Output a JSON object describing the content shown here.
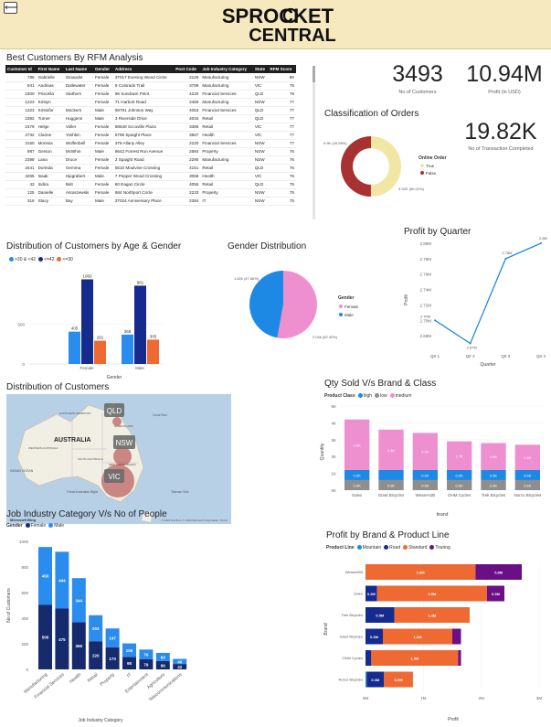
{
  "header": {
    "back_icon": "back-arrow-icon",
    "logo_line1": "SPROCKET",
    "logo_line2": "CENTRAL"
  },
  "rfm_table": {
    "title": "Best Customers By RFM Analysis",
    "columns": [
      "Customer Id",
      "First Name",
      "Last Name",
      "Gender",
      "Address",
      "Post Code",
      "Job Industry Category",
      "State",
      "RFM Score"
    ],
    "rows": [
      [
        "786",
        "Gabrielle",
        "Ginaudot",
        "Female",
        "37017 Evening Wood Circle",
        "2126",
        "Manufacturing",
        "NSW",
        "80"
      ],
      [
        "941",
        "Andreas",
        "Dallewater",
        "Female",
        "9 Colorado Trail",
        "3799",
        "Manufacturing",
        "VIC",
        "78"
      ],
      [
        "1600",
        "Priscella",
        "Stathers",
        "Female",
        "96 Sundown Point",
        "4220",
        "Financial Services",
        "QLD",
        "78"
      ],
      [
        "1223",
        "Kristyn",
        "",
        "Female",
        "71 Harbort Road",
        "2480",
        "Manufacturing",
        "NSW",
        "77"
      ],
      [
        "1323",
        "Kristofor",
        "Mockers",
        "Male",
        "98791 Johnson Way",
        "4053",
        "Financial Services",
        "QLD",
        "77"
      ],
      [
        "2382",
        "Turner",
        "Huggens",
        "Male",
        "3 Riverside Drive",
        "4034",
        "Retail",
        "QLD",
        "77"
      ],
      [
        "2479",
        "Helge",
        "Voller",
        "Female",
        "88548 Sccoville Plaza",
        "3385",
        "Retail",
        "VIC",
        "77"
      ],
      [
        "2732",
        "Clarine",
        "Yoshkin",
        "Female",
        "5795 Spaight Place",
        "3667",
        "Health",
        "VIC",
        "77"
      ],
      [
        "3150",
        "Morissa",
        "Wolfenbell",
        "Female",
        "378 Allany Alley",
        "2220",
        "Financial Services",
        "NSW",
        "77"
      ],
      [
        "987",
        "Gerson",
        "McWhin",
        "Male",
        "8642 Forrest Run Avenue",
        "2684",
        "Property",
        "NSW",
        "76"
      ],
      [
        "2398",
        "Lana",
        "Druce",
        "Female",
        "2 Spaight Road",
        "2290",
        "Manufacturing",
        "NSW",
        "76"
      ],
      [
        "3441",
        "Dorinda",
        "Gemma",
        "Female",
        "5510 Moulvine Crossing",
        "4151",
        "Retail",
        "QLD",
        "76"
      ],
      [
        "3265",
        "Isaak",
        "Hipgrabert",
        "Male",
        "7 Pepper Wood Crossing",
        "3058",
        "Health",
        "VIC",
        "76"
      ],
      [
        "43",
        "Indira",
        "Belt",
        "Female",
        "60 Eagan Circle",
        "4055",
        "Retail",
        "QLD",
        "75"
      ],
      [
        "125",
        "Danielle",
        "Antoszewski",
        "Female",
        "684 Northport Circle",
        "2233",
        "Property",
        "NSW",
        "75"
      ],
      [
        "316",
        "Stacy",
        "Bay",
        "Male",
        "37024 Anniversary Place",
        "2384",
        "IT",
        "NSW",
        "75"
      ]
    ]
  },
  "kpis": {
    "customers_value": "3493",
    "customers_label": "No of Customers",
    "profit_value": "10.94M",
    "profit_label": "Profit (in USD)",
    "transactions_value": "19.82K",
    "transactions_label": "No of Transaction Completed"
  },
  "orders_chart": {
    "title": "Classification of Orders",
    "legend_title": "Online Order",
    "chart_data": {
      "type": "pie",
      "categories": [
        "True",
        "False"
      ],
      "values": [
        9.92,
        9.9
      ],
      "labels": [
        "9.92K (50.02%)",
        "9.9K (49.98%)"
      ],
      "colors": [
        "#f2e6a5",
        "#a83232"
      ]
    }
  },
  "age_gender_chart": {
    "title": "Distribution of Customers by Age & Gender",
    "legend_items": [
      {
        "label": ">30 & <42",
        "color": "#2b8cf0"
      },
      {
        "label": "<=42",
        "color": "#162b8e"
      },
      {
        "label": "<=30",
        "color": "#ee6a32"
      }
    ],
    "xlabel": "Gender",
    "chart_data": {
      "type": "bar",
      "categories": [
        "Female",
        "Male"
      ],
      "series": [
        {
          "name": ">30 & <42",
          "values": [
            405,
            368
          ]
        },
        {
          "name": "<=42",
          "values": [
            1060,
            981
          ]
        },
        {
          "name": "<=30",
          "values": [
            291,
            305
          ]
        }
      ],
      "y_ticks": [
        "500",
        "0"
      ],
      "ylim": [
        0,
        1100
      ]
    }
  },
  "gender_chart": {
    "title": "Gender Distribution",
    "legend_title": "Gender",
    "chart_data": {
      "type": "pie",
      "categories": [
        "Female",
        "Male"
      ],
      "values": [
        2.04,
        1.82
      ],
      "labels": [
        "2.04k (52.32%)",
        "1.82k (47.66%)"
      ],
      "colors": [
        "#ee8fcf",
        "#1e88e5"
      ]
    }
  },
  "profit_quarter_chart": {
    "title": "Profit by Quarter",
    "xlabel": "Quarter",
    "ylabel": "Profit",
    "chart_data": {
      "type": "line",
      "categories": [
        "Qtr 1",
        "Qtr 2",
        "Qtr 3",
        "Qtr 4"
      ],
      "values": [
        2.7,
        2.67,
        2.78,
        2.8
      ],
      "labels": [
        "2.70M",
        "2.67M",
        "2.78M",
        "2.8M"
      ],
      "y_ticks": [
        "2.80M",
        "2.78M",
        "2.76M",
        "2.74M",
        "2.72M",
        "2.70M",
        "2.68M"
      ],
      "ylim": [
        2.66,
        2.8
      ]
    }
  },
  "map_panel": {
    "title": "Distribution of Customers",
    "ocean_labels": [
      "INDIAN OCEAN",
      "Great Australian Bight",
      "Coral Sea",
      "Tasman Sea"
    ],
    "country_label": "AUSTRALIA",
    "region_labels": [
      "NORTHERN TERRITORY",
      "QUEENSLAND",
      "WESTERN AUSTRALIA",
      "SOUTH AUSTRALIA",
      "NEW SOUTH WALES"
    ],
    "state_labels": [
      "QLD",
      "NSW",
      "VIC"
    ],
    "attribution": "© 2023 TomTom, © 2023 Microsoft Corporation, Terms",
    "brand": "Microsoft Bing"
  },
  "qty_brand_chart": {
    "title": "Qty Sold V/s Brand & Class",
    "legend_title": "Product Class",
    "legend_items": [
      {
        "label": "high",
        "color": "#1e88e5"
      },
      {
        "label": "low",
        "color": "#8e8e8e"
      },
      {
        "label": "medium",
        "color": "#ee8fcf"
      }
    ],
    "xlabel": "brand",
    "ylabel": "Quantity",
    "chart_data": {
      "type": "bar",
      "stacked": true,
      "categories": [
        "Solex",
        "Giant Bicycles",
        "WeareA2B",
        "OHM Cycles",
        "Trek Bicycles",
        "Norco Bicycles"
      ],
      "series": [
        {
          "name": "low",
          "values": [
            0.6,
            0.6,
            0.6,
            0.6,
            0.6,
            0.6
          ],
          "labels": [
            "0.6K",
            "0.6K",
            "0.6K",
            "0.6K",
            "0.6K",
            "0.6K"
          ]
        },
        {
          "name": "high",
          "values": [
            0.6,
            0.6,
            0.6,
            0.6,
            0.6,
            0.6
          ],
          "labels": [
            "0.6K",
            "",
            "0.6K",
            "0.6K",
            "0.6K",
            "0.6K"
          ]
        },
        {
          "name": "medium",
          "values": [
            3.0,
            2.4,
            2.2,
            1.7,
            1.6,
            1.5
          ],
          "labels": [
            "3.0K",
            "2.4K",
            "2.2K",
            "1.7K",
            "1.6K",
            "1.5K"
          ]
        }
      ],
      "y_ticks": [
        "5K",
        "4K",
        "3K",
        "2K",
        "1K",
        "0K"
      ],
      "ylim": [
        0,
        5
      ]
    }
  },
  "job_industry_chart": {
    "title": "Job Industry Category V/s No of People",
    "legend_title": "Gender",
    "legend_items": [
      {
        "label": "Female",
        "color": "#162b6e"
      },
      {
        "label": "Male",
        "color": "#2b8cf0"
      }
    ],
    "xlabel": "Job Industry Category",
    "ylabel": "No of Customers",
    "chart_data": {
      "type": "bar",
      "stacked": true,
      "categories": [
        "Manufacturing",
        "Financial Services",
        "Health",
        "Retail",
        "Property",
        "IT",
        "Entertainment",
        "Agriculture",
        "Telecommunications"
      ],
      "series": [
        {
          "name": "Female",
          "values": [
            506,
            475,
            369,
            220,
            173,
            98,
            79,
            66,
            42
          ]
        },
        {
          "name": "Male",
          "values": [
            450,
            444,
            344,
            203,
            147,
            105,
            76,
            63,
            40
          ]
        }
      ],
      "y_ticks": [
        "1000",
        "800",
        "600",
        "400",
        "200",
        "0"
      ],
      "ylim": [
        0,
        1000
      ]
    }
  },
  "profit_brand_chart": {
    "title": "Profit by Brand & Product Line",
    "legend_title": "Product Line",
    "legend_items": [
      {
        "label": "Mountain",
        "color": "#1e88e5"
      },
      {
        "label": "Road",
        "color": "#162b8e"
      },
      {
        "label": "Standard",
        "color": "#ee6a32"
      },
      {
        "label": "Touring",
        "color": "#6b0f87"
      }
    ],
    "xlabel": "Profit",
    "ylabel": "Brand",
    "chart_data": {
      "type": "bar",
      "orientation": "horizontal",
      "stacked": true,
      "categories": [
        "WeareA2B",
        "Solex",
        "Trek Bicycles",
        "Giant Bicycles",
        "OHM Cycles",
        "Norco Bicycles"
      ],
      "series": [
        {
          "name": "Mountain",
          "values": [
            0,
            0,
            0,
            0,
            0,
            0.02
          ],
          "labels": [
            "",
            "",
            "",
            "",
            "",
            ""
          ]
        },
        {
          "name": "Road",
          "values": [
            0,
            0.2,
            0.5,
            0.3,
            0.1,
            0.3
          ],
          "labels": [
            "",
            "0.2M",
            "0.5M",
            "0.3M",
            "",
            "0.3M"
          ]
        },
        {
          "name": "Standard",
          "values": [
            1.9,
            1.9,
            1.3,
            1.2,
            1.5,
            0.5
          ],
          "labels": [
            "1.9M",
            "1.9M",
            "1.3M",
            "1.2M",
            "1.5M",
            "0.5M"
          ]
        },
        {
          "name": "Touring",
          "values": [
            0.8,
            0.3,
            0,
            0.15,
            0.05,
            0
          ],
          "labels": [
            "0.8M",
            "0.3M",
            "",
            "",
            "",
            ""
          ]
        }
      ],
      "x_ticks": [
        "0M",
        "1M",
        "2M",
        "3M"
      ],
      "xlim": [
        0,
        3
      ]
    }
  }
}
